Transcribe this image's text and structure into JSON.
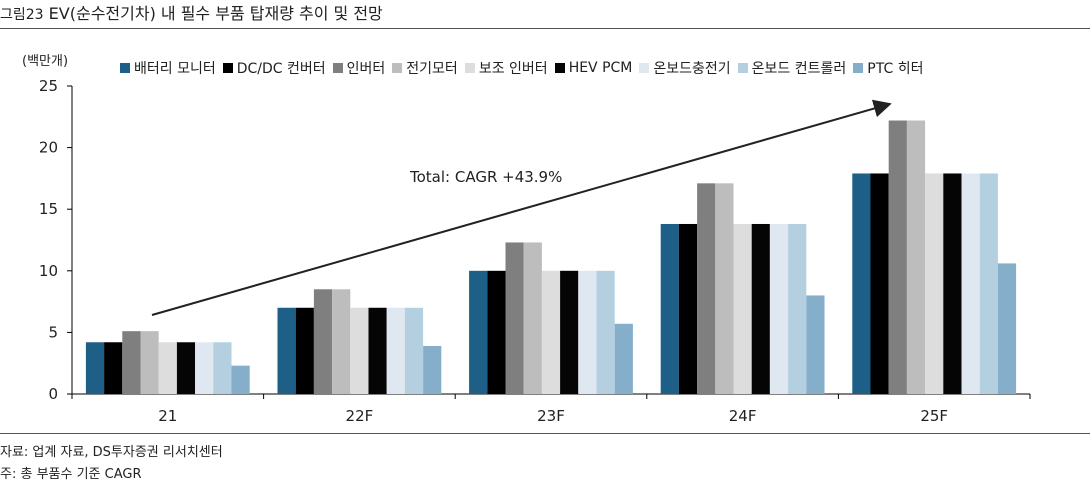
{
  "figure": {
    "label": "그림23",
    "title": "EV(순수전기차) 내 필수 부품 탑재량 추이 및 전망",
    "unit": "(백만개)",
    "source": "자료: 업계 자료, DS투자증권 리서치센터",
    "note": "주: 총 부품수 기준 CAGR"
  },
  "chart_data": {
    "type": "bar",
    "categories": [
      "21",
      "22F",
      "23F",
      "24F",
      "25F"
    ],
    "ylim": [
      0,
      25
    ],
    "yticks": [
      0,
      5,
      10,
      15,
      20,
      25
    ],
    "grid": false,
    "legend_position": "top",
    "series": [
      {
        "name": "배터리 모니터",
        "color": "#1d5f86",
        "values": [
          4.2,
          7.0,
          10.0,
          13.8,
          17.9
        ]
      },
      {
        "name": "DC/DC 컨버터",
        "color": "#000000",
        "values": [
          4.2,
          7.0,
          10.0,
          13.8,
          17.9
        ]
      },
      {
        "name": "인버터",
        "color": "#7f7f7f",
        "values": [
          5.1,
          8.5,
          12.3,
          17.1,
          22.2
        ]
      },
      {
        "name": "전기모터",
        "color": "#bdbdbd",
        "values": [
          5.1,
          8.5,
          12.3,
          17.1,
          22.2
        ]
      },
      {
        "name": "보조 인버터",
        "color": "#dddddd",
        "values": [
          4.2,
          7.0,
          10.0,
          13.8,
          17.9
        ]
      },
      {
        "name": "HEV PCM",
        "color": "#050505",
        "values": [
          4.2,
          7.0,
          10.0,
          13.8,
          17.9
        ]
      },
      {
        "name": "온보드충전기",
        "color": "#dfe8f0",
        "values": [
          4.2,
          7.0,
          10.0,
          13.8,
          17.9
        ]
      },
      {
        "name": "온보드 컨트롤러",
        "color": "#b3cfe0",
        "values": [
          4.2,
          7.0,
          10.0,
          13.8,
          17.9
        ]
      },
      {
        "name": "PTC 히터",
        "color": "#85aecb",
        "values": [
          2.3,
          3.9,
          5.7,
          8.0,
          10.6
        ]
      }
    ],
    "annotation": {
      "text": "Total: CAGR +43.9%"
    }
  }
}
